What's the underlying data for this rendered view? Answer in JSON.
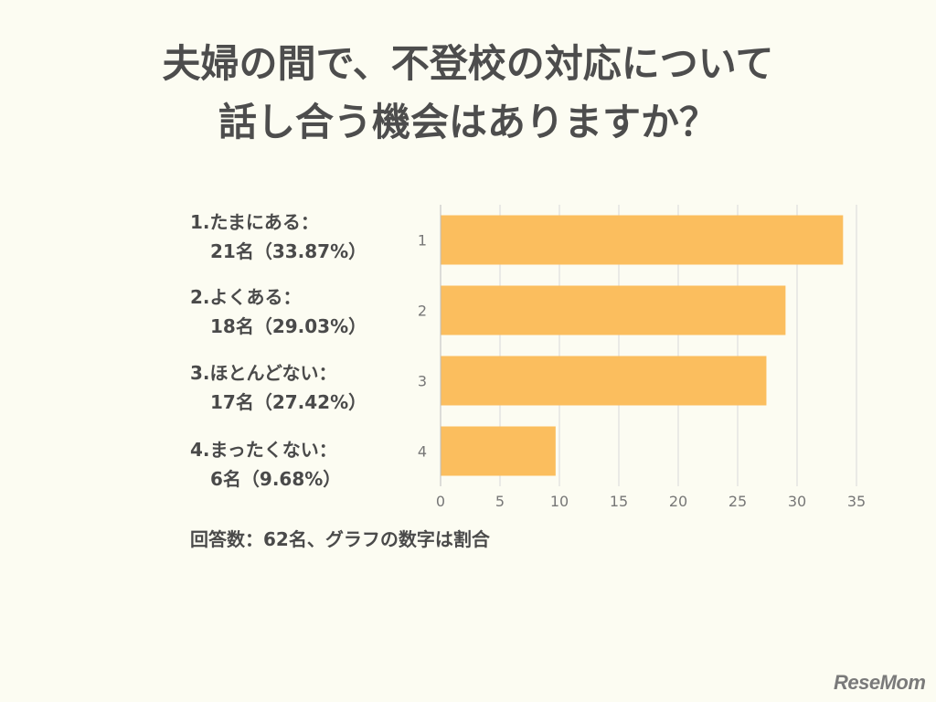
{
  "title": {
    "line1": "夫婦の間で、不登校の対応について",
    "line2": "話し合う機会はありますか？"
  },
  "labels": [
    {
      "line1": "1.たまにある：",
      "line2": "21名（33.87%）"
    },
    {
      "line1": "2.よくある：",
      "line2": "18名（29.03%）"
    },
    {
      "line1": "3.ほとんどない：",
      "line2": "17名（27.42%）"
    },
    {
      "line1": "4.まったくない：",
      "line2": "6名（9.68%）"
    }
  ],
  "note": "回答数：62名、グラフの数字は割合",
  "logo": "ReseMom",
  "chart_data": {
    "type": "bar",
    "orientation": "horizontal",
    "categories": [
      "1",
      "2",
      "3",
      "4"
    ],
    "values": [
      33.87,
      29.03,
      27.42,
      9.68
    ],
    "xlim": [
      0,
      35
    ],
    "xticks": [
      0,
      5,
      10,
      15,
      20,
      25,
      30,
      35
    ],
    "grid": true,
    "bar_color": "#fbbe5e",
    "grid_color": "#d9d9d9",
    "axis_text_color": "#777777"
  }
}
